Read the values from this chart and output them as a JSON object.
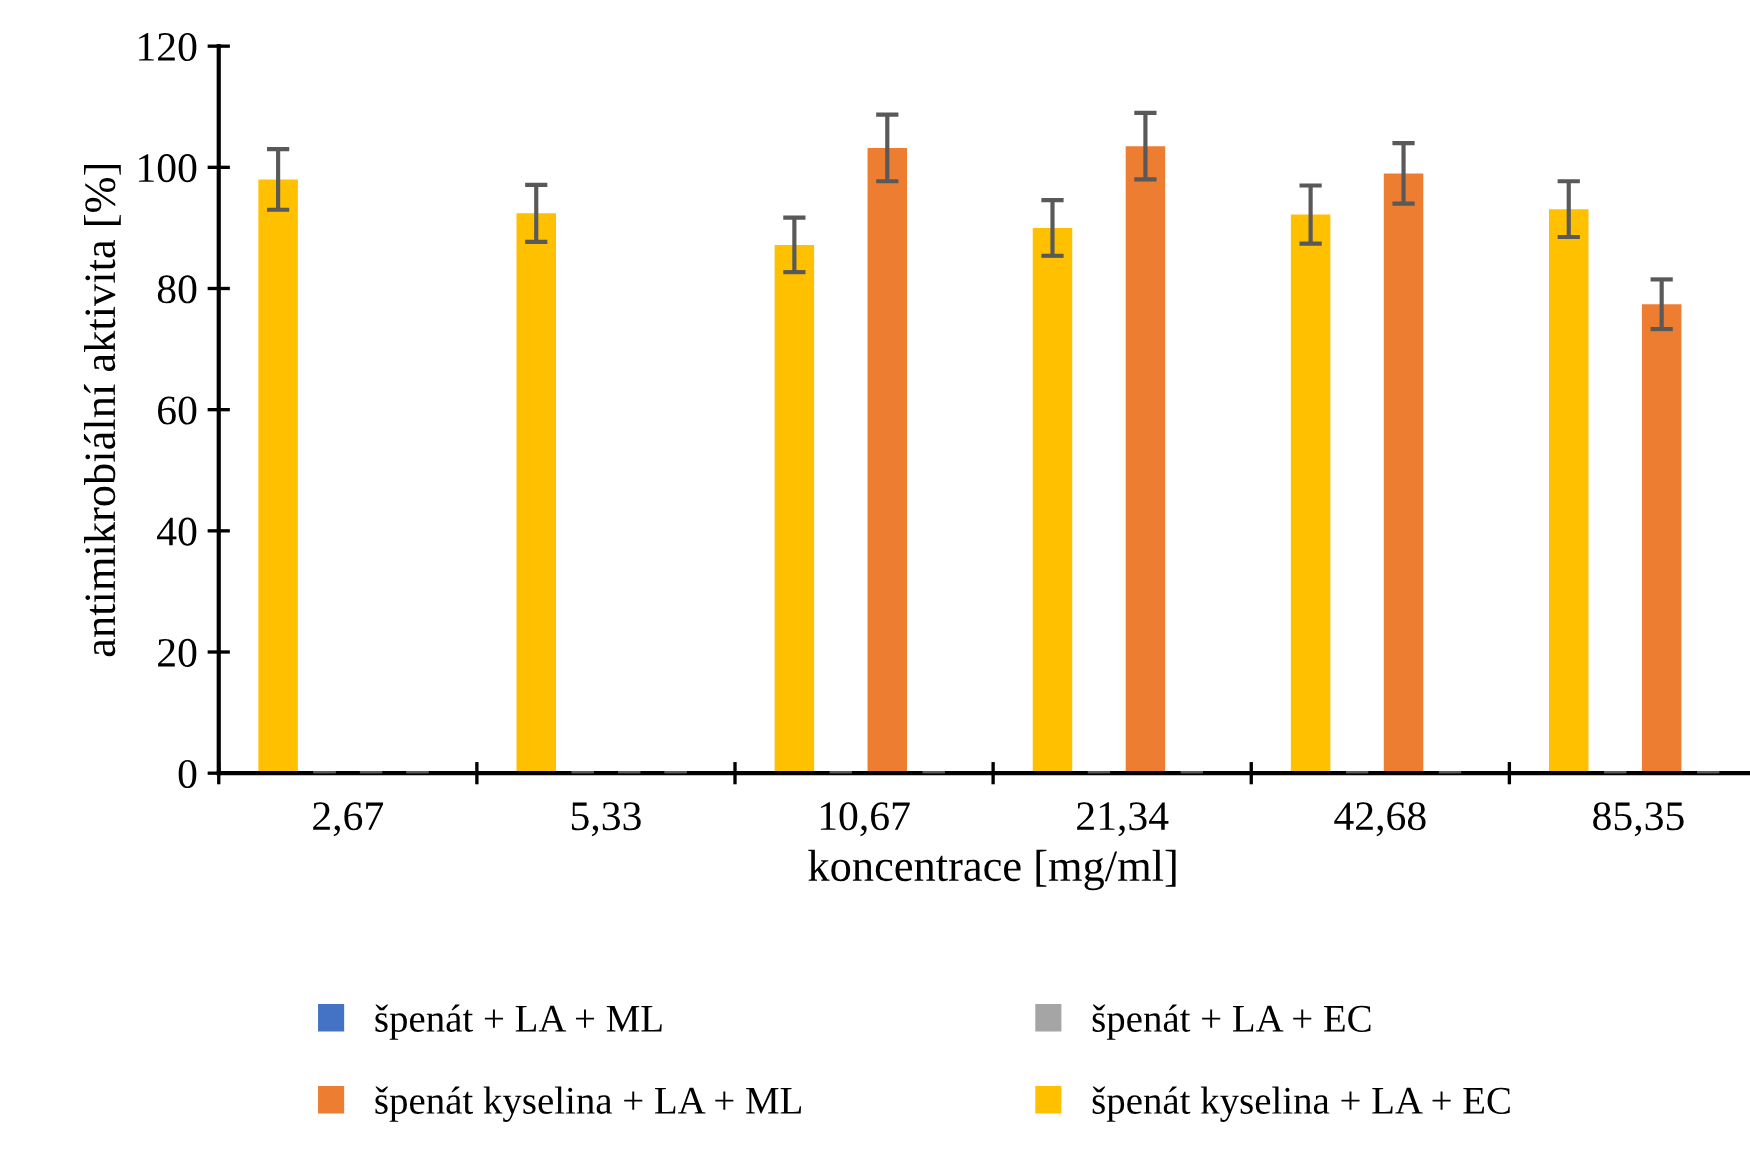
{
  "chart_data": {
    "type": "bar",
    "xlabel": "koncentrace [mg/ml]",
    "ylabel": "antimikrobiální aktivita [%]",
    "categories": [
      "2,67",
      "5,33",
      "10,67",
      "21,34",
      "42,68",
      "85,35"
    ],
    "series": [
      {
        "name": "špenát + LA + ML",
        "color": "#4472c4",
        "values": [
          0,
          0,
          0,
          0,
          0,
          0
        ],
        "errors": [
          0,
          0,
          0,
          0,
          0,
          0
        ]
      },
      {
        "name": "špenát kyselina + LA + ML",
        "color": "#ed7d31",
        "values": [
          0,
          0,
          103.2,
          103.5,
          99.0,
          77.4
        ],
        "errors": [
          0,
          0,
          5.5,
          5.5,
          5.0,
          4.1
        ]
      },
      {
        "name": "špenát + LA + EC",
        "color": "#a5a5a5",
        "values": [
          0,
          0,
          0,
          0,
          0,
          0
        ],
        "errors": [
          0,
          0,
          0,
          0,
          0,
          0
        ]
      },
      {
        "name": "špenát kyselina + LA + EC",
        "color": "#ffc000",
        "values": [
          98.0,
          92.4,
          87.2,
          90.0,
          92.2,
          93.1
        ],
        "errors": [
          5.0,
          4.7,
          4.5,
          4.6,
          4.8,
          4.6
        ]
      }
    ],
    "ylim": [
      0,
      120
    ],
    "yticks": [
      0,
      20,
      40,
      60,
      80,
      100,
      120
    ],
    "grid": false,
    "legend": "bottom"
  }
}
